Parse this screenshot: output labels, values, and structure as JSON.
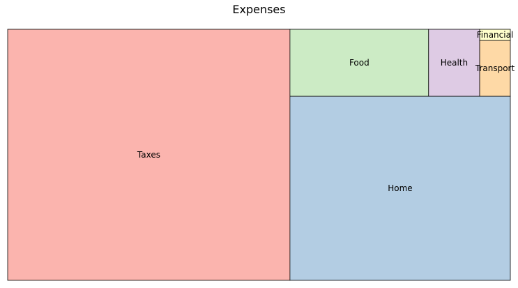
{
  "chart_data": {
    "type": "treemap",
    "title": "Expenses",
    "items": [
      {
        "label": "Taxes",
        "value": 145,
        "color": "#fbb4ae"
      },
      {
        "label": "Home",
        "value": 83,
        "color": "#b3cde3"
      },
      {
        "label": "Food",
        "value": 19,
        "color": "#ccebc5"
      },
      {
        "label": "Health",
        "value": 7,
        "color": "#decbe4"
      },
      {
        "label": "Transport",
        "value": 3.5,
        "color": "#fed9a6"
      },
      {
        "label": "Financial",
        "value": 0.7,
        "color": "#ffffcc"
      }
    ]
  }
}
